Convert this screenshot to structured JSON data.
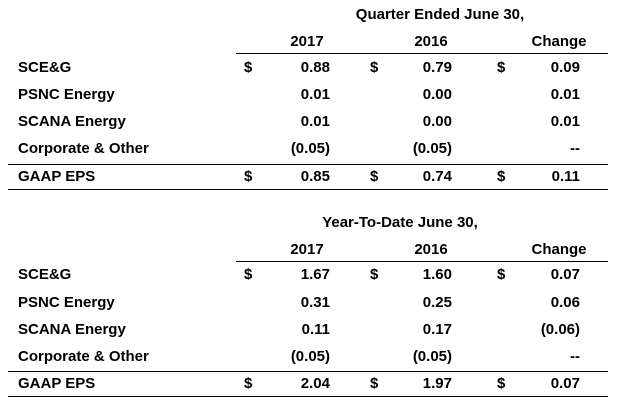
{
  "q": {
    "title": "Quarter Ended  June 30,",
    "col_headers": [
      "2017",
      "2016",
      "Change"
    ],
    "rows": [
      {
        "label": "SCE&G",
        "d1": "$",
        "v1": "0.88",
        "d2": "$",
        "v2": "0.79",
        "d3": "$",
        "v3": "0.09"
      },
      {
        "label": "PSNC Energy",
        "d1": "",
        "v1": "0.01",
        "d2": "",
        "v2": "0.00",
        "d3": "",
        "v3": "0.01"
      },
      {
        "label": "SCANA Energy",
        "d1": "",
        "v1": "0.01",
        "d2": "",
        "v2": "0.00",
        "d3": "",
        "v3": "0.01"
      },
      {
        "label": "Corporate & Other",
        "d1": "",
        "v1": "(0.05)",
        "d2": "",
        "v2": "(0.05)",
        "d3": "",
        "v3": "--"
      },
      {
        "label": "GAAP EPS",
        "d1": "$",
        "v1": "0.85",
        "d2": "$",
        "v2": "0.74",
        "d3": "$",
        "v3": "0.11"
      }
    ]
  },
  "y": {
    "title": "Year-To-Date June 30,",
    "col_headers": [
      "2017",
      "2016",
      "Change"
    ],
    "rows": [
      {
        "label": "SCE&G",
        "d1": "$",
        "v1": "1.67",
        "d2": "$",
        "v2": "1.60",
        "d3": "$",
        "v3": "0.07"
      },
      {
        "label": "PSNC Energy",
        "d1": "",
        "v1": "0.31",
        "d2": "",
        "v2": "0.25",
        "d3": "",
        "v3": "0.06"
      },
      {
        "label": "SCANA Energy",
        "d1": "",
        "v1": "0.11",
        "d2": "",
        "v2": "0.17",
        "d3": "",
        "v3": "(0.06)"
      },
      {
        "label": "Corporate & Other",
        "d1": "",
        "v1": "(0.05)",
        "d2": "",
        "v2": "(0.05)",
        "d3": "",
        "v3": "--"
      },
      {
        "label": "GAAP EPS",
        "d1": "$",
        "v1": "2.04",
        "d2": "$",
        "v2": "1.97",
        "d3": "$",
        "v3": "0.07"
      }
    ]
  }
}
